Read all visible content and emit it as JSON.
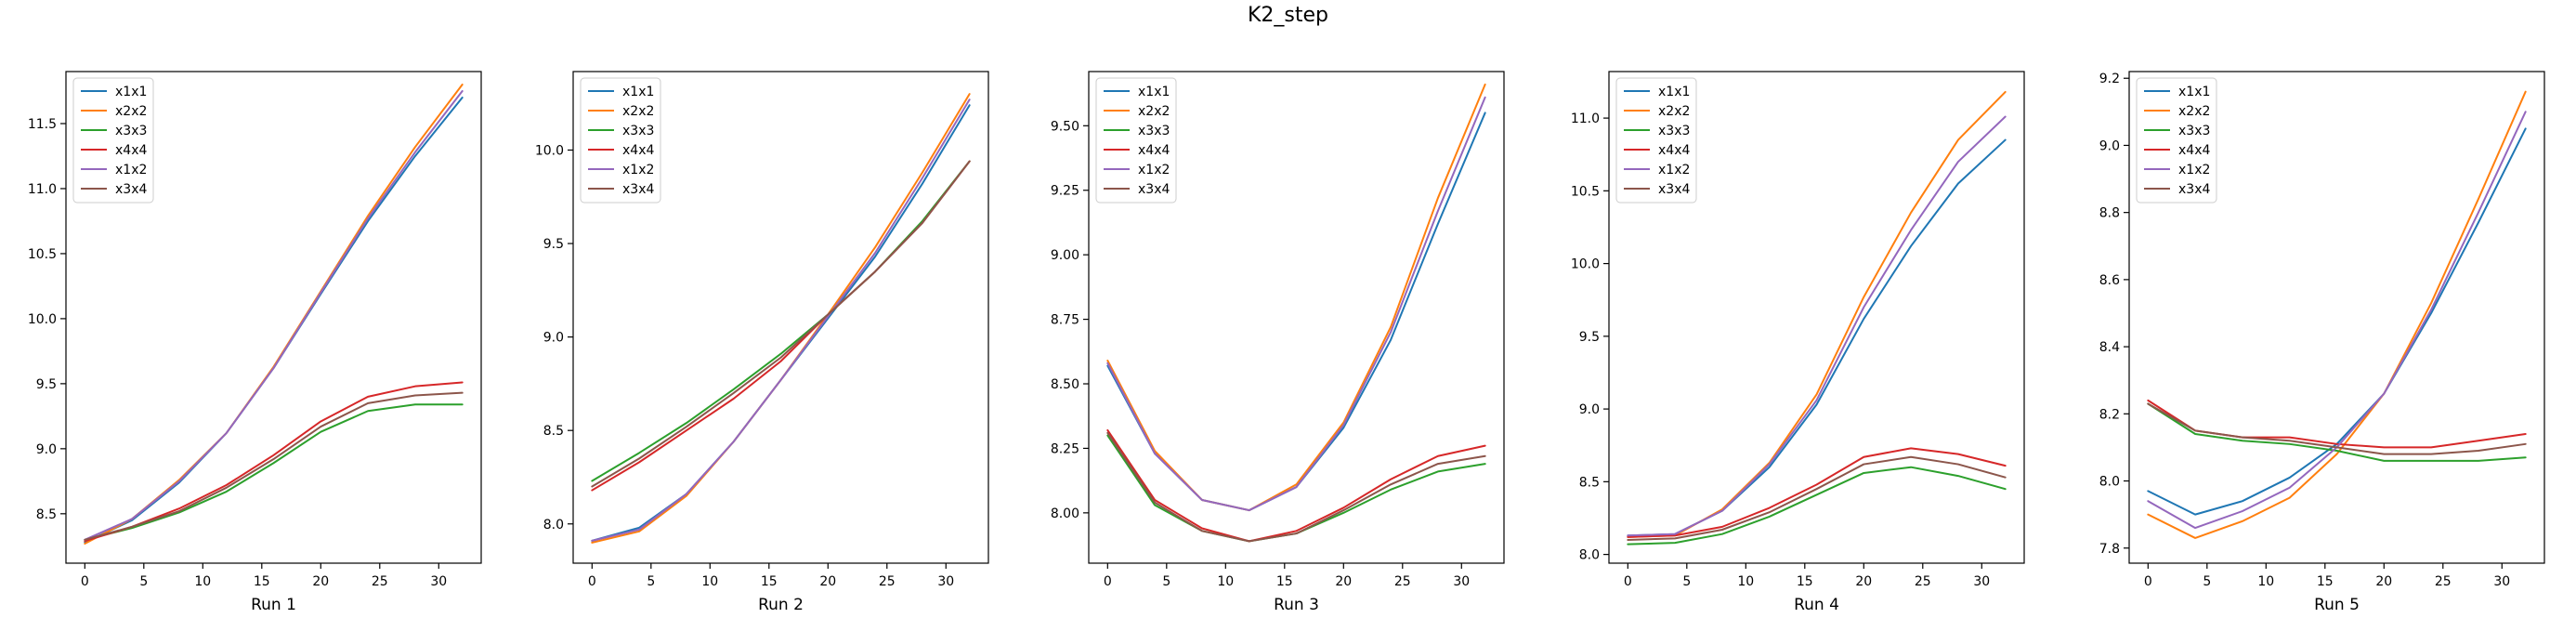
{
  "figure": {
    "title": "K2_step"
  },
  "colors": {
    "x1x1": "#1f77b4",
    "x2x2": "#ff7f0e",
    "x3x3": "#2ca02c",
    "x4x4": "#d62728",
    "x1x2": "#9467bd",
    "x3x4": "#8c564b"
  },
  "chart_data": [
    {
      "type": "line",
      "title": "",
      "xlabel": "Run 1",
      "ylabel": "",
      "xlim": [
        -1.6,
        33.6
      ],
      "ylim": [
        8.12,
        11.9
      ],
      "xticks": [
        0,
        5,
        10,
        15,
        20,
        25,
        30
      ],
      "yticks": [
        8.5,
        9.0,
        9.5,
        10.0,
        10.5,
        11.0,
        11.5
      ],
      "legend": "top-left",
      "grid": false,
      "x": [
        0,
        4,
        8,
        12,
        16,
        20,
        24,
        28,
        32
      ],
      "series": [
        {
          "name": "x1x1",
          "values": [
            8.28,
            8.45,
            8.74,
            9.12,
            9.62,
            10.19,
            10.75,
            11.25,
            11.7
          ]
        },
        {
          "name": "x2x2",
          "values": [
            8.27,
            8.46,
            8.76,
            9.12,
            9.63,
            10.21,
            10.79,
            11.32,
            11.8
          ]
        },
        {
          "name": "x3x3",
          "values": [
            8.3,
            8.39,
            8.51,
            8.67,
            8.89,
            9.13,
            9.29,
            9.34,
            9.34
          ]
        },
        {
          "name": "x4x4",
          "values": [
            8.29,
            8.4,
            8.54,
            8.72,
            8.95,
            9.21,
            9.4,
            9.48,
            9.51
          ]
        },
        {
          "name": "x1x2",
          "values": [
            8.3,
            8.46,
            8.75,
            9.12,
            9.62,
            10.2,
            10.77,
            11.28,
            11.75
          ]
        },
        {
          "name": "x3x4",
          "values": [
            8.3,
            8.4,
            8.52,
            8.7,
            8.92,
            9.17,
            9.35,
            9.41,
            9.43
          ]
        }
      ]
    },
    {
      "type": "line",
      "title": "",
      "xlabel": "Run 2",
      "ylabel": "",
      "xlim": [
        -1.6,
        33.6
      ],
      "ylim": [
        7.79,
        10.42
      ],
      "xticks": [
        0,
        5,
        10,
        15,
        20,
        25,
        30
      ],
      "yticks": [
        8.0,
        8.5,
        9.0,
        9.5,
        10.0
      ],
      "legend": "top-left",
      "grid": false,
      "x": [
        0,
        4,
        8,
        12,
        16,
        20,
        24,
        28,
        32
      ],
      "series": [
        {
          "name": "x1x1",
          "values": [
            7.91,
            7.98,
            8.16,
            8.44,
            8.77,
            9.1,
            9.43,
            9.82,
            10.24
          ]
        },
        {
          "name": "x2x2",
          "values": [
            7.9,
            7.96,
            8.15,
            8.44,
            8.77,
            9.12,
            9.48,
            9.88,
            10.3
          ]
        },
        {
          "name": "x3x3",
          "values": [
            8.23,
            8.38,
            8.54,
            8.72,
            8.91,
            9.12,
            9.35,
            9.62,
            9.94
          ]
        },
        {
          "name": "x4x4",
          "values": [
            8.18,
            8.33,
            8.5,
            8.67,
            8.87,
            9.12,
            9.35,
            9.61,
            9.94
          ]
        },
        {
          "name": "x1x2",
          "values": [
            7.91,
            7.97,
            8.16,
            8.44,
            8.77,
            9.11,
            9.45,
            9.85,
            10.27
          ]
        },
        {
          "name": "x3x4",
          "values": [
            8.2,
            8.35,
            8.52,
            8.7,
            8.89,
            9.12,
            9.35,
            9.61,
            9.94
          ]
        }
      ]
    },
    {
      "type": "line",
      "title": "",
      "xlabel": "Run 3",
      "ylabel": "",
      "xlim": [
        -1.6,
        33.6
      ],
      "ylim": [
        7.805,
        9.71
      ],
      "xticks": [
        0,
        5,
        10,
        15,
        20,
        25,
        30
      ],
      "yticks": [
        8.0,
        8.25,
        8.5,
        8.75,
        9.0,
        9.25,
        9.5
      ],
      "legend": "top-left",
      "grid": false,
      "x": [
        0,
        4,
        8,
        12,
        16,
        20,
        24,
        28,
        32
      ],
      "series": [
        {
          "name": "x1x1",
          "values": [
            8.57,
            8.23,
            8.05,
            8.01,
            8.1,
            8.33,
            8.67,
            9.12,
            9.55
          ]
        },
        {
          "name": "x2x2",
          "values": [
            8.59,
            8.24,
            8.05,
            8.01,
            8.11,
            8.35,
            8.72,
            9.22,
            9.66
          ]
        },
        {
          "name": "x3x3",
          "values": [
            8.3,
            8.03,
            7.93,
            7.89,
            7.92,
            8.0,
            8.09,
            8.16,
            8.19
          ]
        },
        {
          "name": "x4x4",
          "values": [
            8.32,
            8.05,
            7.94,
            7.89,
            7.93,
            8.02,
            8.13,
            8.22,
            8.26
          ]
        },
        {
          "name": "x1x2",
          "values": [
            8.58,
            8.23,
            8.05,
            8.01,
            8.1,
            8.34,
            8.7,
            9.17,
            9.61
          ]
        },
        {
          "name": "x3x4",
          "values": [
            8.31,
            8.04,
            7.93,
            7.89,
            7.92,
            8.01,
            8.11,
            8.19,
            8.22
          ]
        }
      ]
    },
    {
      "type": "line",
      "title": "",
      "xlabel": "Run 4",
      "ylabel": "",
      "xlim": [
        -1.6,
        33.6
      ],
      "ylim": [
        7.94,
        11.32
      ],
      "xticks": [
        0,
        5,
        10,
        15,
        20,
        25,
        30
      ],
      "yticks": [
        8.0,
        8.5,
        9.0,
        9.5,
        10.0,
        10.5,
        11.0
      ],
      "legend": "top-left",
      "grid": false,
      "x": [
        0,
        4,
        8,
        12,
        16,
        20,
        24,
        28,
        32
      ],
      "series": [
        {
          "name": "x1x1",
          "values": [
            8.13,
            8.14,
            8.3,
            8.6,
            9.03,
            9.62,
            10.12,
            10.55,
            10.85
          ]
        },
        {
          "name": "x2x2",
          "values": [
            8.12,
            8.13,
            8.31,
            8.63,
            9.1,
            9.77,
            10.35,
            10.85,
            11.18
          ]
        },
        {
          "name": "x3x3",
          "values": [
            8.07,
            8.08,
            8.14,
            8.26,
            8.41,
            8.56,
            8.6,
            8.54,
            8.45
          ]
        },
        {
          "name": "x4x4",
          "values": [
            8.12,
            8.13,
            8.19,
            8.32,
            8.48,
            8.67,
            8.73,
            8.69,
            8.61
          ]
        },
        {
          "name": "x1x2",
          "values": [
            8.13,
            8.14,
            8.3,
            8.62,
            9.06,
            9.7,
            10.23,
            10.7,
            11.01
          ]
        },
        {
          "name": "x3x4",
          "values": [
            8.1,
            8.11,
            8.17,
            8.29,
            8.45,
            8.62,
            8.67,
            8.62,
            8.53
          ]
        }
      ]
    },
    {
      "type": "line",
      "title": "",
      "xlabel": "Run 5",
      "ylabel": "",
      "xlim": [
        -1.6,
        33.6
      ],
      "ylim": [
        7.755,
        9.22
      ],
      "xticks": [
        0,
        5,
        10,
        15,
        20,
        25,
        30
      ],
      "yticks": [
        7.8,
        8.0,
        8.2,
        8.4,
        8.6,
        8.8,
        9.0,
        9.2
      ],
      "legend": "top-left",
      "grid": false,
      "x": [
        0,
        4,
        8,
        12,
        16,
        20,
        24,
        28,
        32
      ],
      "series": [
        {
          "name": "x1x1",
          "values": [
            7.97,
            7.9,
            7.94,
            8.01,
            8.11,
            8.26,
            8.5,
            8.77,
            9.05
          ]
        },
        {
          "name": "x2x2",
          "values": [
            7.9,
            7.83,
            7.88,
            7.95,
            8.08,
            8.26,
            8.53,
            8.84,
            9.16
          ]
        },
        {
          "name": "x3x3",
          "values": [
            8.23,
            8.14,
            8.12,
            8.11,
            8.09,
            8.06,
            8.06,
            8.06,
            8.07
          ]
        },
        {
          "name": "x4x4",
          "values": [
            8.24,
            8.15,
            8.13,
            8.13,
            8.11,
            8.1,
            8.1,
            8.12,
            8.14
          ]
        },
        {
          "name": "x1x2",
          "values": [
            7.94,
            7.86,
            7.91,
            7.98,
            8.1,
            8.26,
            8.51,
            8.8,
            9.1
          ]
        },
        {
          "name": "x3x4",
          "values": [
            8.23,
            8.15,
            8.13,
            8.12,
            8.1,
            8.08,
            8.08,
            8.09,
            8.11
          ]
        }
      ]
    }
  ]
}
